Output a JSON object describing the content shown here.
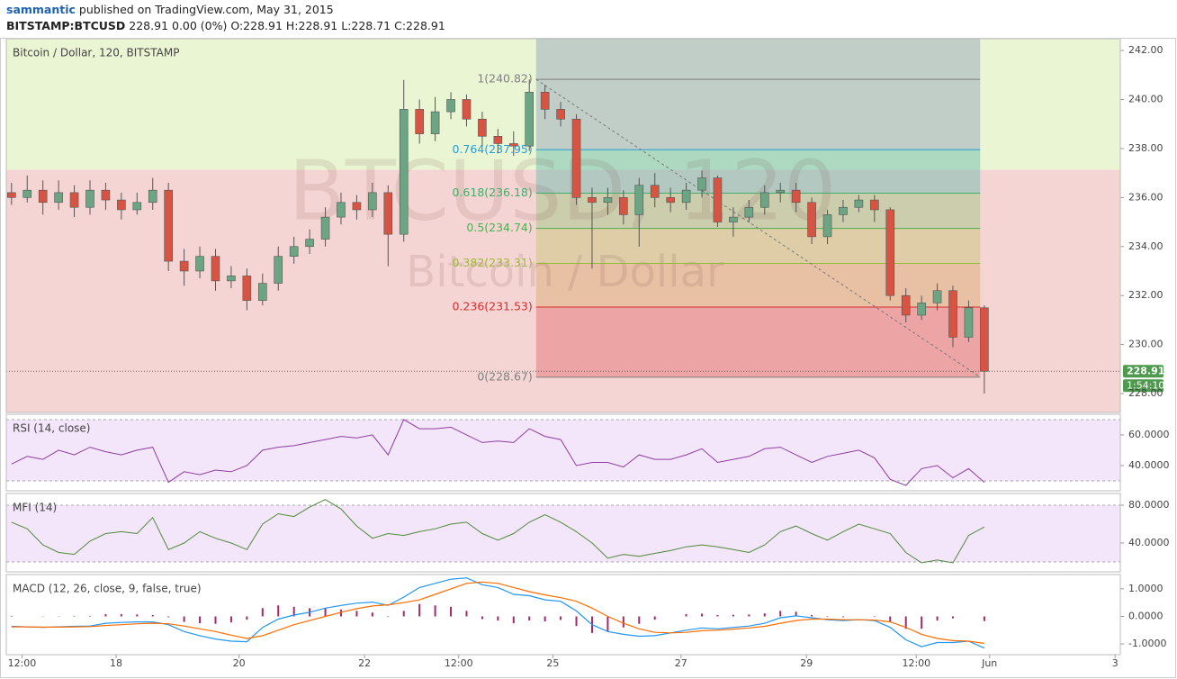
{
  "header": {
    "publisher": "sammantic",
    "published": "published on TradingView.com, May 31, 2015",
    "symbol": "BITSTAMP:BTCUSD",
    "quote": "228.91 0.00 (0%) O:228.91 H:228.91 L:228.71 C:228.91"
  },
  "chart_data": [
    {
      "type": "candlestick",
      "title": "Bitcoin / Dollar, 120, BITSTAMP",
      "watermark": "BTCUSD, 120",
      "watermark_subtitle": "Bitcoin / Dollar",
      "x": [
        -2,
        1,
        4,
        7,
        10,
        13,
        16,
        19,
        22,
        25,
        28,
        31,
        34,
        37,
        40,
        43,
        46,
        49,
        52,
        55,
        58,
        61,
        64,
        67,
        70,
        73,
        76,
        79,
        82,
        85,
        88,
        91,
        94,
        97,
        100,
        103,
        106,
        109,
        112,
        115,
        118,
        121,
        124,
        127,
        130,
        133,
        136,
        139,
        142,
        145,
        148,
        151,
        154,
        157,
        160,
        163,
        166,
        169,
        172,
        175,
        178,
        181,
        184
      ],
      "open": [
        236.2,
        236.0,
        236.3,
        235.8,
        236.2,
        235.6,
        236.3,
        235.9,
        235.5,
        235.8,
        236.3,
        233.4,
        233.0,
        233.6,
        232.6,
        232.8,
        231.8,
        232.5,
        233.6,
        234.0,
        234.3,
        235.2,
        235.8,
        235.5,
        236.2,
        234.5,
        239.6,
        238.6,
        239.5,
        240.0,
        239.2,
        238.5,
        238.2,
        238.1,
        240.3,
        239.6,
        239.2,
        236.0,
        235.8,
        236.0,
        235.3,
        236.5,
        236.0,
        235.8,
        236.3,
        236.8,
        235.0,
        235.2,
        235.6,
        236.2,
        236.3,
        235.8,
        234.4,
        235.3,
        235.6,
        235.9,
        235.5,
        232.0,
        231.2,
        231.7,
        232.2,
        230.3,
        231.5
      ],
      "high": [
        236.6,
        236.9,
        236.7,
        236.7,
        236.5,
        236.7,
        236.6,
        236.2,
        236.2,
        236.8,
        236.6,
        233.9,
        234.0,
        233.9,
        233.2,
        233.1,
        232.9,
        234.0,
        234.4,
        234.7,
        235.6,
        236.2,
        236.1,
        236.6,
        236.5,
        240.8,
        240.0,
        240.1,
        240.3,
        240.2,
        239.5,
        238.8,
        238.7,
        240.82,
        240.6,
        239.9,
        239.4,
        236.4,
        236.4,
        236.3,
        236.8,
        237.0,
        236.4,
        236.6,
        237.1,
        236.9,
        235.6,
        235.9,
        236.5,
        236.6,
        236.6,
        236.0,
        235.5,
        235.9,
        236.1,
        236.1,
        235.6,
        232.3,
        232.0,
        232.5,
        232.4,
        231.8,
        231.6
      ],
      "low": [
        235.7,
        235.8,
        235.3,
        235.5,
        235.2,
        235.3,
        235.5,
        235.1,
        235.3,
        235.5,
        233.0,
        232.4,
        232.7,
        232.2,
        232.3,
        231.4,
        231.6,
        232.2,
        233.3,
        233.7,
        234.0,
        234.9,
        235.1,
        235.2,
        233.2,
        234.2,
        238.2,
        238.3,
        239.2,
        238.9,
        238.1,
        237.8,
        237.7,
        237.9,
        239.2,
        238.9,
        235.7,
        233.1,
        235.3,
        234.9,
        234.0,
        235.6,
        235.4,
        235.5,
        236.0,
        234.8,
        234.4,
        235.0,
        235.3,
        235.8,
        235.4,
        234.1,
        234.1,
        235.0,
        235.4,
        235.0,
        231.8,
        230.9,
        231.0,
        231.4,
        229.9,
        230.1,
        228.0
      ],
      "close": [
        236.0,
        236.3,
        235.8,
        236.2,
        235.6,
        236.3,
        235.9,
        235.5,
        235.8,
        236.3,
        233.4,
        233.0,
        233.6,
        232.6,
        232.8,
        231.8,
        232.5,
        233.6,
        234.0,
        234.3,
        235.2,
        235.8,
        235.5,
        236.2,
        234.5,
        239.6,
        238.6,
        239.5,
        240.0,
        239.2,
        238.5,
        238.2,
        238.1,
        240.3,
        239.6,
        239.2,
        236.0,
        235.8,
        236.0,
        235.3,
        236.5,
        236.0,
        235.8,
        236.3,
        236.8,
        235.0,
        235.2,
        235.6,
        236.2,
        236.3,
        235.8,
        234.4,
        235.3,
        235.6,
        235.9,
        235.5,
        232.0,
        231.2,
        231.7,
        232.2,
        230.3,
        231.5,
        228.91
      ],
      "up_color": "#6ba583",
      "down_color": "#d75442",
      "xlim": [
        -3,
        210
      ],
      "xticks": [
        {
          "value": 0,
          "label": "12:00"
        },
        {
          "value": 18,
          "label": "18"
        },
        {
          "value": 41.5,
          "label": "20"
        },
        {
          "value": 65.5,
          "label": "22"
        },
        {
          "value": 83.5,
          "label": "12:00"
        },
        {
          "value": 101.5,
          "label": "25"
        },
        {
          "value": 126,
          "label": "27"
        },
        {
          "value": 150,
          "label": "29"
        },
        {
          "value": 171,
          "label": "12:00"
        },
        {
          "value": 185,
          "label": "Jun"
        },
        {
          "value": 209,
          "label": "3"
        }
      ],
      "ylim": [
        227.23,
        242.48
      ],
      "yticks": [
        {
          "value": 228,
          "label": "228.00"
        },
        {
          "value": 230,
          "label": "230.00"
        },
        {
          "value": 232,
          "label": "232.00"
        },
        {
          "value": 234,
          "label": "234.00"
        },
        {
          "value": 236,
          "label": "236.00"
        },
        {
          "value": 238,
          "label": "238.00"
        },
        {
          "value": 240,
          "label": "240.00"
        },
        {
          "value": 242,
          "label": "242.00"
        }
      ],
      "last_price": 228.91,
      "last_price_color": "#4e9a4e",
      "countdown": "1:54:10",
      "zones": {
        "split": 237.13,
        "upper_color": "#eaf5d3",
        "lower_color": "#f5d5d3"
      },
      "fibonacci": {
        "x_range": [
          98.3,
          183.2
        ],
        "levels": [
          {
            "value": 240.82,
            "label": "1(240.82)"
          },
          {
            "value": 237.95,
            "label": "0.764(237.95)"
          },
          {
            "value": 236.18,
            "label": "0.618(236.18)"
          },
          {
            "value": 234.74,
            "label": "0.5(234.74)"
          },
          {
            "value": 233.31,
            "label": "0.382(233.31)"
          },
          {
            "value": 231.53,
            "label": "0.236(231.53)"
          },
          {
            "value": 228.67,
            "label": "0(228.67)"
          }
        ],
        "colors": [
          "#808080",
          "#2a9fd6",
          "#3fae6a",
          "#4caf50",
          "#9ab83a",
          "#d32f2f",
          "#808080"
        ],
        "fills": [
          "#8f9fb8",
          "#8f9fb8",
          "#62b8a8",
          "#9cc47c",
          "#c4c46e",
          "#d9a86a",
          "#e26b6b"
        ]
      }
    },
    {
      "type": "line",
      "title": "RSI (14, close)",
      "color": "#8e3fa0",
      "x": [
        -2,
        1,
        4,
        7,
        10,
        13,
        16,
        19,
        22,
        25,
        28,
        31,
        34,
        37,
        40,
        43,
        46,
        49,
        52,
        55,
        58,
        61,
        64,
        67,
        70,
        73,
        76,
        79,
        82,
        85,
        88,
        91,
        94,
        97,
        100,
        103,
        106,
        109,
        112,
        115,
        118,
        121,
        124,
        127,
        130,
        133,
        136,
        139,
        142,
        145,
        148,
        151,
        154,
        157,
        160,
        163,
        166,
        169,
        172,
        175,
        178,
        181,
        184
      ],
      "values": [
        41,
        46,
        44,
        50,
        47,
        52,
        49,
        47,
        50,
        52,
        29,
        36,
        34,
        37,
        36,
        40,
        50,
        52,
        53,
        55,
        57,
        59,
        58,
        60,
        47,
        70,
        64,
        64,
        65,
        60,
        55,
        56,
        55,
        64,
        59,
        57,
        40,
        42,
        42,
        39,
        47,
        44,
        44,
        47,
        51,
        42,
        44,
        46,
        51,
        52,
        47,
        42,
        46,
        48,
        50,
        45,
        31,
        27,
        38,
        40,
        32,
        38,
        29
      ],
      "ylim": [
        23.5,
        73.5
      ],
      "yticks": [
        {
          "value": 40,
          "label": "40.0000"
        },
        {
          "value": 60,
          "label": "60.0000"
        }
      ],
      "bands": [
        70,
        30
      ],
      "band_color": "#f3e5fa"
    },
    {
      "type": "line",
      "title": "MFI (14)",
      "color": "#4f8a3a",
      "x": [
        -2,
        1,
        4,
        7,
        10,
        13,
        16,
        19,
        22,
        25,
        28,
        31,
        34,
        37,
        40,
        43,
        46,
        49,
        52,
        55,
        58,
        61,
        64,
        67,
        70,
        73,
        76,
        79,
        82,
        85,
        88,
        91,
        94,
        97,
        100,
        103,
        106,
        109,
        112,
        115,
        118,
        121,
        124,
        127,
        130,
        133,
        136,
        139,
        142,
        145,
        148,
        151,
        154,
        157,
        160,
        163,
        166,
        169,
        172,
        175,
        178,
        181,
        184
      ],
      "values": [
        62,
        55,
        38,
        30,
        28,
        42,
        50,
        52,
        50,
        67,
        33,
        40,
        52,
        45,
        40,
        33,
        60,
        71,
        68,
        78,
        86,
        76,
        58,
        45,
        50,
        48,
        52,
        55,
        60,
        62,
        50,
        43,
        50,
        62,
        70,
        62,
        52,
        40,
        24,
        28,
        26,
        29,
        32,
        36,
        38,
        36,
        33,
        30,
        38,
        52,
        58,
        50,
        43,
        52,
        60,
        55,
        50,
        30,
        19,
        22,
        19,
        48,
        57
      ],
      "ylim": [
        9.5,
        92.4
      ],
      "yticks": [
        {
          "value": 40,
          "label": "40.0000"
        },
        {
          "value": 80,
          "label": "80.0000"
        }
      ],
      "bands": [
        80,
        20
      ],
      "band_color": "#f3e5fa"
    },
    {
      "type": "macd",
      "title": "MACD (12, 26, close, 9, false, true)",
      "macd_color": "#2196f3",
      "signal_color": "#ff6d00",
      "histogram_color": "#a52869",
      "x": [
        -2,
        1,
        4,
        7,
        10,
        13,
        16,
        19,
        22,
        25,
        28,
        31,
        34,
        37,
        40,
        43,
        46,
        49,
        52,
        55,
        58,
        61,
        64,
        67,
        70,
        73,
        76,
        79,
        82,
        85,
        88,
        91,
        94,
        97,
        100,
        103,
        106,
        109,
        112,
        115,
        118,
        121,
        124,
        127,
        130,
        133,
        136,
        139,
        142,
        145,
        148,
        151,
        154,
        157,
        160,
        163,
        166,
        169,
        172,
        175,
        178,
        181,
        184
      ],
      "macd": [
        -0.36,
        -0.38,
        -0.4,
        -0.38,
        -0.36,
        -0.35,
        -0.25,
        -0.22,
        -0.2,
        -0.2,
        -0.3,
        -0.55,
        -0.7,
        -0.82,
        -0.9,
        -0.92,
        -0.4,
        -0.1,
        0.05,
        0.15,
        0.3,
        0.4,
        0.48,
        0.52,
        0.4,
        0.7,
        1.05,
        1.2,
        1.35,
        1.4,
        1.15,
        1.05,
        0.8,
        0.75,
        0.6,
        0.55,
        0.2,
        -0.3,
        -0.55,
        -0.65,
        -0.72,
        -0.7,
        -0.6,
        -0.5,
        -0.42,
        -0.45,
        -0.4,
        -0.35,
        -0.25,
        -0.05,
        0.02,
        -0.05,
        -0.12,
        -0.15,
        -0.12,
        -0.15,
        -0.4,
        -0.85,
        -1.1,
        -0.95,
        -0.95,
        -0.9,
        -1.15
      ],
      "signal": [
        -0.38,
        -0.38,
        -0.39,
        -0.39,
        -0.38,
        -0.37,
        -0.33,
        -0.3,
        -0.27,
        -0.25,
        -0.27,
        -0.35,
        -0.45,
        -0.55,
        -0.68,
        -0.8,
        -0.7,
        -0.5,
        -0.3,
        -0.15,
        0,
        0.15,
        0.28,
        0.38,
        0.42,
        0.5,
        0.6,
        0.8,
        1.0,
        1.2,
        1.25,
        1.2,
        1.05,
        0.9,
        0.78,
        0.68,
        0.55,
        0.3,
        0.0,
        -0.25,
        -0.45,
        -0.58,
        -0.6,
        -0.58,
        -0.52,
        -0.5,
        -0.46,
        -0.42,
        -0.36,
        -0.25,
        -0.15,
        -0.1,
        -0.1,
        -0.12,
        -0.12,
        -0.13,
        -0.2,
        -0.4,
        -0.65,
        -0.8,
        -0.88,
        -0.9,
        -0.98
      ],
      "histogram": [
        0.02,
        0,
        -0.01,
        0.01,
        0.02,
        0.02,
        0.08,
        0.08,
        0.07,
        0.05,
        -0.03,
        -0.2,
        -0.25,
        -0.27,
        -0.22,
        -0.12,
        0.3,
        0.4,
        0.35,
        0.3,
        0.3,
        0.25,
        0.2,
        0.14,
        -0.02,
        0.2,
        0.45,
        0.4,
        0.35,
        0.2,
        -0.1,
        -0.15,
        -0.25,
        -0.15,
        -0.18,
        -0.13,
        -0.35,
        -0.6,
        -0.55,
        -0.4,
        -0.27,
        -0.12,
        0,
        0.08,
        0.1,
        0.05,
        0.06,
        0.07,
        0.11,
        0.2,
        0.17,
        0.05,
        -0.02,
        -0.03,
        0,
        -0.02,
        -0.2,
        -0.45,
        -0.45,
        -0.15,
        -0.07,
        0,
        -0.17
      ],
      "ylim": [
        -1.39,
        1.52
      ],
      "yticks": [
        {
          "value": 1,
          "label": "1.0000"
        },
        {
          "value": 0,
          "label": "0.0000"
        },
        {
          "value": -1,
          "label": "-1.0000"
        }
      ]
    }
  ]
}
